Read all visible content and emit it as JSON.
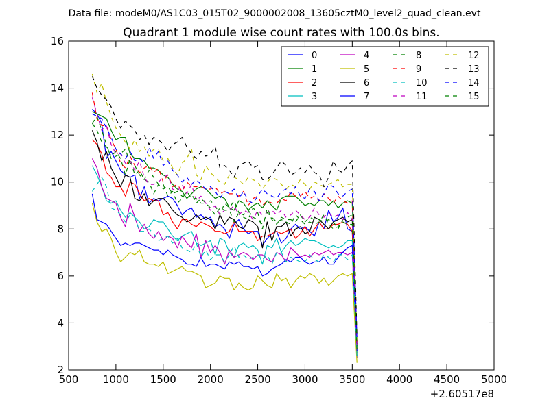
{
  "suptitle": "Data file: modeM0/AS1C03_015T02_9000002008_13605cztM0_level2_quad_clean.evt",
  "chart_data": {
    "type": "line",
    "title": "Quadrant 1 module wise count rates with 100.0s bins.",
    "xlabel": "",
    "ylabel": "",
    "x_offset_label": "+2.60517e8",
    "xlim": [
      500,
      5000
    ],
    "ylim": [
      2,
      16
    ],
    "xticks": [
      "500",
      "1000",
      "1500",
      "2000",
      "2500",
      "3000",
      "3500",
      "4000",
      "4500",
      "5000"
    ],
    "yticks": [
      "2",
      "4",
      "6",
      "8",
      "10",
      "12",
      "14",
      "16"
    ],
    "grid": false,
    "legend_position": "top-right",
    "x_start": 750,
    "x_step": 50,
    "series": [
      {
        "name": "0",
        "color": "#0000ff",
        "dash": "solid",
        "values": [
          13.1,
          12.9,
          12.5,
          11.0,
          11.3,
          10.9,
          10.5,
          10.3,
          10.2,
          10.3,
          9.3,
          9.8,
          9.1,
          9.3,
          9.2,
          9.3,
          9.4,
          9.3,
          9.0,
          8.6,
          8.8,
          8.9,
          8.5,
          8.6,
          8.4,
          8.5,
          8.1,
          8.2,
          8.0,
          7.6,
          8.2,
          8.4,
          8.0,
          7.8,
          7.9,
          7.9,
          7.3,
          7.6,
          7.8,
          7.9,
          7.4,
          7.6,
          8.0,
          8.2,
          8.0,
          8.1,
          7.9,
          7.7,
          8.3,
          8.0,
          8.8,
          8.3,
          8.5,
          8.9,
          8.0,
          7.9,
          3.0
        ]
      },
      {
        "name": "1",
        "color": "#008000",
        "dash": "solid",
        "values": [
          13.0,
          12.9,
          12.8,
          12.7,
          12.2,
          11.8,
          11.9,
          11.9,
          11.2,
          11.0,
          11.0,
          10.9,
          10.6,
          10.6,
          10.5,
          10.3,
          10.2,
          9.9,
          9.7,
          9.6,
          9.3,
          9.5,
          9.7,
          9.8,
          9.7,
          9.5,
          9.3,
          9.4,
          9.3,
          8.9,
          8.8,
          9.2,
          9.1,
          8.8,
          9.0,
          9.1,
          8.9,
          9.2,
          9.0,
          8.8,
          9.3,
          9.4,
          9.4,
          9.4,
          9.2,
          9.0,
          9.1,
          9.0,
          9.2,
          9.2,
          9.0,
          9.2,
          8.9,
          9.1,
          9.2,
          9.1,
          2.7
        ]
      },
      {
        "name": "2",
        "color": "#ff0000",
        "dash": "solid",
        "values": [
          11.8,
          11.6,
          11.2,
          10.4,
          10.2,
          9.8,
          9.8,
          9.4,
          10.0,
          9.9,
          9.5,
          9.2,
          9.3,
          9.2,
          9.2,
          8.6,
          8.7,
          8.3,
          8.0,
          8.4,
          8.4,
          8.2,
          8.1,
          8.3,
          8.2,
          8.1,
          7.9,
          7.9,
          7.8,
          7.9,
          8.3,
          7.9,
          7.9,
          7.9,
          7.9,
          7.5,
          7.7,
          7.7,
          7.8,
          7.9,
          7.8,
          7.9,
          8.0,
          7.6,
          7.8,
          8.1,
          7.7,
          8.0,
          8.3,
          8.0,
          8.0,
          8.2,
          8.2,
          8.3,
          8.2,
          7.9,
          2.6
        ]
      },
      {
        "name": "3",
        "color": "#00bfbf",
        "dash": "solid",
        "values": [
          10.7,
          10.3,
          9.8,
          9.2,
          9.1,
          9.2,
          8.8,
          8.5,
          8.7,
          8.5,
          8.3,
          8.0,
          8.1,
          8.4,
          8.3,
          8.3,
          8.0,
          7.7,
          7.5,
          7.7,
          7.8,
          7.9,
          7.4,
          7.3,
          7.4,
          7.5,
          6.9,
          7.6,
          7.5,
          7.0,
          6.8,
          7.3,
          7.4,
          7.2,
          7.3,
          7.1,
          6.5,
          7.3,
          7.2,
          7.6,
          7.0,
          7.3,
          7.5,
          7.3,
          7.4,
          7.6,
          7.5,
          7.5,
          7.4,
          7.3,
          7.2,
          7.3,
          7.2,
          7.3,
          7.5,
          7.5,
          2.5
        ]
      },
      {
        "name": "4",
        "color": "#bf00bf",
        "dash": "solid",
        "values": [
          11.0,
          10.6,
          9.8,
          9.3,
          9.2,
          9.1,
          8.5,
          8.1,
          9.1,
          8.5,
          7.9,
          8.2,
          7.8,
          7.6,
          7.9,
          7.5,
          7.7,
          7.6,
          7.2,
          7.7,
          7.4,
          7.2,
          7.8,
          6.8,
          7.5,
          7.0,
          7.3,
          7.0,
          6.5,
          7.1,
          6.8,
          6.9,
          7.0,
          6.9,
          6.7,
          6.9,
          6.9,
          6.7,
          6.6,
          7.0,
          6.9,
          6.6,
          7.2,
          7.0,
          6.8,
          6.9,
          6.8,
          7.0,
          6.9,
          7.0,
          7.1,
          6.9,
          7.0,
          7.0,
          6.9,
          7.0,
          2.5
        ]
      },
      {
        "name": "5",
        "color": "#bfbf00",
        "dash": "solid",
        "values": [
          9.1,
          8.3,
          7.9,
          8.0,
          7.6,
          7.0,
          6.6,
          6.8,
          7.0,
          6.9,
          7.1,
          6.6,
          6.5,
          6.5,
          6.4,
          6.6,
          6.1,
          6.2,
          6.3,
          6.4,
          6.2,
          6.2,
          6.1,
          6.0,
          5.5,
          5.6,
          5.7,
          6.0,
          5.9,
          5.9,
          5.4,
          5.7,
          5.5,
          5.4,
          5.5,
          6.0,
          5.8,
          5.6,
          5.5,
          6.1,
          5.8,
          5.9,
          5.5,
          5.8,
          6.0,
          5.9,
          6.1,
          6.0,
          5.7,
          5.9,
          5.6,
          5.8,
          6.0,
          6.1,
          6.0,
          6.1,
          2.3
        ]
      },
      {
        "name": "6",
        "color": "#000000",
        "dash": "solid",
        "values": [
          12.2,
          11.7,
          10.9,
          11.3,
          10.6,
          10.2,
          9.8,
          10.3,
          10.2,
          9.3,
          9.2,
          9.5,
          9.0,
          9.2,
          9.3,
          9.3,
          9.1,
          8.8,
          8.6,
          8.5,
          8.3,
          8.4,
          8.6,
          8.4,
          8.5,
          8.4,
          8.0,
          8.6,
          8.2,
          8.5,
          8.4,
          8.1,
          8.0,
          8.4,
          8.3,
          8.1,
          7.2,
          8.3,
          7.5,
          8.1,
          8.1,
          8.3,
          7.7,
          8.0,
          8.1,
          7.8,
          7.9,
          8.5,
          8.4,
          8.2,
          8.0,
          8.3,
          8.4,
          8.5,
          8.3,
          8.4,
          3.1
        ]
      },
      {
        "name": "7",
        "color": "#0000ff",
        "dash": "solid",
        "values": [
          9.5,
          8.4,
          8.3,
          8.2,
          7.9,
          7.6,
          7.3,
          7.4,
          7.3,
          7.4,
          7.4,
          7.3,
          7.2,
          7.1,
          7.1,
          6.9,
          7.1,
          6.9,
          6.8,
          6.7,
          6.5,
          6.5,
          6.4,
          6.8,
          6.4,
          6.5,
          6.5,
          6.4,
          6.3,
          6.6,
          6.5,
          6.6,
          6.4,
          6.4,
          6.3,
          6.4,
          6.0,
          6.1,
          6.3,
          6.4,
          6.5,
          6.7,
          6.6,
          6.8,
          6.8,
          6.6,
          6.5,
          6.6,
          6.6,
          6.8,
          6.5,
          6.5,
          6.8,
          7.0,
          7.2,
          7.3,
          2.8
        ]
      },
      {
        "name": "8",
        "color": "#008000",
        "dash": "dashed",
        "values": [
          12.5,
          12.2,
          11.7,
          11.5,
          11.1,
          11.3,
          11.0,
          10.3,
          11.0,
          10.3,
          10.5,
          10.1,
          10.0,
          9.5,
          9.9,
          9.7,
          9.8,
          9.5,
          9.6,
          9.4,
          9.3,
          9.5,
          9.1,
          9.3,
          9.1,
          9.2,
          9.0,
          8.6,
          9.1,
          8.9,
          9.2,
          8.7,
          8.5,
          8.4,
          8.9,
          8.7,
          8.0,
          8.9,
          8.4,
          8.2,
          8.5,
          8.4,
          8.4,
          8.3,
          8.6,
          8.3,
          8.5,
          8.4,
          8.4,
          8.3,
          8.4,
          8.3,
          8.0,
          8.4,
          8.5,
          8.6,
          3.0
        ]
      },
      {
        "name": "9",
        "color": "#ff0000",
        "dash": "dashed",
        "values": [
          13.8,
          12.7,
          12.4,
          12.4,
          11.8,
          11.4,
          10.8,
          10.6,
          11.1,
          10.7,
          10.4,
          10.6,
          10.7,
          10.4,
          10.6,
          10.0,
          10.3,
          9.8,
          9.9,
          9.6,
          10.0,
          9.8,
          9.8,
          9.8,
          9.7,
          9.7,
          9.8,
          9.5,
          9.6,
          9.5,
          9.5,
          9.4,
          9.6,
          9.0,
          9.3,
          9.4,
          9.0,
          9.2,
          9.1,
          9.1,
          9.3,
          9.2,
          9.6,
          9.4,
          9.4,
          9.6,
          9.3,
          9.4,
          9.2,
          9.5,
          9.3,
          9.1,
          9.4,
          9.2,
          9.1,
          9.2,
          3.2
        ]
      },
      {
        "name": "10",
        "color": "#00bfbf",
        "dash": "dashed",
        "values": [
          9.6,
          9.9,
          10.2,
          9.8,
          8.9,
          8.8,
          8.6,
          8.3,
          8.6,
          8.5,
          7.9,
          7.9,
          8.0,
          7.8,
          7.5,
          7.6,
          7.7,
          7.4,
          7.6,
          7.2,
          7.1,
          7.0,
          7.4,
          6.8,
          7.1,
          6.7,
          6.9,
          6.9,
          6.6,
          6.9,
          7.3,
          6.8,
          6.9,
          6.7,
          6.8,
          6.9,
          6.7,
          6.9,
          6.5,
          7.0,
          7.0,
          6.6,
          6.8,
          6.7,
          6.6,
          6.6,
          6.9,
          6.7,
          6.6,
          6.9,
          6.8,
          6.6,
          6.9,
          6.9,
          6.7,
          6.9,
          2.6
        ]
      },
      {
        "name": "11",
        "color": "#bf00bf",
        "dash": "dashed",
        "values": [
          13.6,
          12.9,
          12.2,
          12.4,
          11.6,
          11.2,
          11.2,
          10.8,
          10.9,
          10.5,
          10.9,
          10.2,
          9.9,
          9.9,
          10.0,
          10.2,
          10.3,
          9.7,
          9.6,
          9.9,
          9.5,
          9.9,
          9.2,
          9.4,
          9.1,
          8.8,
          9.0,
          8.6,
          8.8,
          8.8,
          9.0,
          8.6,
          8.8,
          8.7,
          8.4,
          8.8,
          8.6,
          8.7,
          8.8,
          8.6,
          8.8,
          8.5,
          8.6,
          8.8,
          8.6,
          8.4,
          8.5,
          8.9,
          8.6,
          8.5,
          8.7,
          8.5,
          8.6,
          8.4,
          8.7,
          8.4,
          2.9
        ]
      },
      {
        "name": "12",
        "color": "#bfbf00",
        "dash": "dashed",
        "values": [
          14.6,
          13.8,
          14.2,
          13.4,
          12.8,
          12.3,
          12.0,
          11.7,
          11.4,
          11.8,
          11.3,
          11.5,
          11.1,
          11.4,
          11.4,
          10.9,
          11.0,
          10.6,
          10.3,
          10.8,
          11.0,
          11.4,
          10.3,
          10.1,
          10.7,
          10.4,
          10.2,
          10.0,
          9.9,
          10.3,
          10.2,
          10.1,
          9.9,
          10.2,
          10.1,
          10.0,
          9.7,
          10.0,
          10.2,
          10.1,
          9.9,
          9.7,
          9.9,
          9.8,
          10.1,
          9.9,
          9.7,
          10.0,
          9.9,
          9.8,
          9.9,
          10.0,
          10.1,
          9.8,
          9.9,
          9.9,
          3.3
        ]
      },
      {
        "name": "13",
        "color": "#000000",
        "dash": "dashed",
        "values": [
          14.5,
          14.0,
          13.7,
          13.5,
          13.2,
          12.7,
          12.3,
          12.6,
          12.4,
          12.2,
          11.8,
          12.0,
          11.6,
          11.9,
          11.8,
          11.6,
          11.3,
          11.6,
          11.7,
          11.9,
          11.5,
          11.2,
          11.0,
          11.3,
          11.1,
          11.2,
          11.5,
          10.6,
          10.7,
          10.5,
          10.2,
          10.7,
          10.8,
          10.9,
          10.6,
          10.7,
          10.1,
          10.1,
          10.3,
          10.6,
          10.9,
          10.7,
          10.3,
          10.4,
          10.6,
          10.4,
          10.7,
          10.4,
          10.3,
          9.8,
          10.2,
          10.9,
          10.5,
          10.4,
          10.7,
          10.9,
          3.4
        ]
      },
      {
        "name": "14",
        "color": "#0000ff",
        "dash": "dashed",
        "values": [
          12.9,
          12.8,
          12.7,
          12.3,
          11.9,
          11.4,
          11.2,
          11.0,
          11.3,
          10.9,
          11.0,
          10.8,
          11.5,
          11.0,
          11.3,
          10.7,
          10.9,
          10.5,
          10.3,
          10.0,
          10.2,
          9.9,
          10.1,
          9.9,
          9.7,
          9.8,
          9.6,
          9.3,
          9.6,
          9.5,
          9.7,
          9.3,
          9.6,
          9.2,
          9.1,
          9.4,
          9.7,
          9.5,
          9.4,
          9.3,
          9.6,
          9.7,
          9.5,
          9.8,
          9.4,
          9.3,
          9.7,
          9.6,
          9.2,
          9.5,
          9.9,
          9.8,
          9.5,
          9.4,
          9.6,
          9.7,
          3.3
        ]
      },
      {
        "name": "15",
        "color": "#008000",
        "dash": "dashed",
        "values": [
          12.5,
          12.8,
          12.2,
          11.6,
          11.0,
          11.1,
          11.2,
          11.4,
          10.8,
          10.7,
          10.3,
          10.1,
          10.5,
          10.2,
          9.9,
          9.9,
          9.4,
          9.6,
          9.1,
          9.3,
          9.6,
          9.3,
          9.3,
          9.1,
          9.1,
          8.9,
          8.6,
          8.9,
          8.8,
          8.8,
          8.3,
          8.7,
          8.6,
          8.8,
          8.5,
          8.4,
          8.2,
          8.7,
          8.5,
          8.3,
          8.4,
          8.3,
          8.2,
          8.6,
          8.4,
          8.2,
          8.3,
          8.2,
          8.3,
          8.6,
          8.2,
          8.0,
          8.1,
          8.3,
          8.2,
          8.2,
          2.9
        ]
      }
    ]
  }
}
